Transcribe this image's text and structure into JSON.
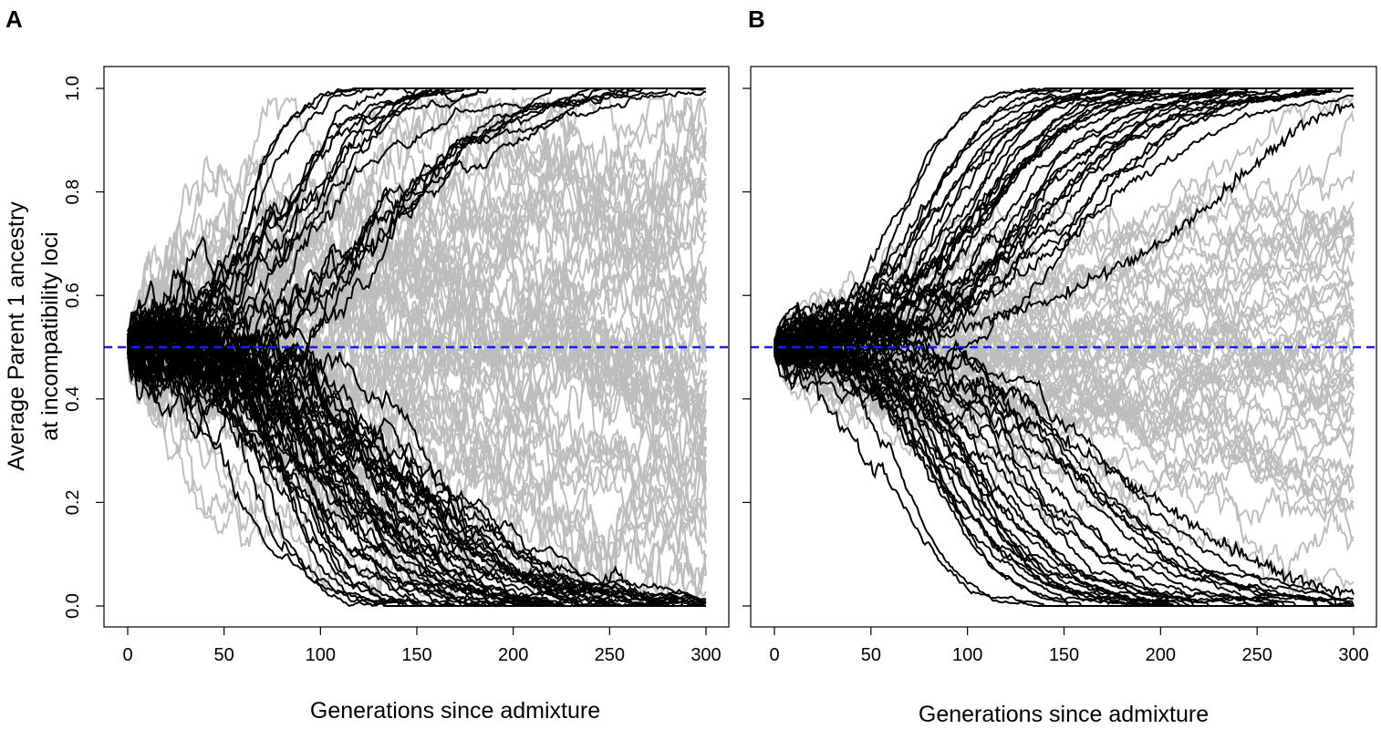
{
  "chart_data": [
    {
      "type": "line",
      "panel_label": "A",
      "xlabel": "Generations since admixture",
      "ylabel_lines": [
        "Average Parent 1 ancestry",
        "at incompatibility loci"
      ],
      "xlim": [
        0,
        300
      ],
      "ylim": [
        0,
        1
      ],
      "xticks": [
        0,
        50,
        100,
        150,
        200,
        250,
        300
      ],
      "yticks": [
        0.0,
        0.2,
        0.4,
        0.6,
        0.8,
        1.0
      ],
      "xtick_labels": [
        "0",
        "50",
        "100",
        "150",
        "200",
        "250",
        "300"
      ],
      "ytick_labels": [
        "0.0",
        "0.2",
        "0.4",
        "0.6",
        "0.8",
        "1.0"
      ],
      "grid": false,
      "reference_line": {
        "y": 0.5,
        "style": "dashed",
        "color": "#1a1aff"
      },
      "series_groups": [
        {
          "color": "#bdbdbd",
          "description_count": 60,
          "start": 0.5,
          "final_values_range": [
            0.06,
            0.84
          ],
          "step_sd": 0.02,
          "seed": 11
        },
        {
          "color": "#000000",
          "description_count": 60,
          "start": 0.5,
          "fix_time_range": [
            90,
            300
          ],
          "fix_values": [
            0,
            1
          ],
          "noise_sd": 0.012,
          "seed": 23
        }
      ],
      "special_series": [
        {
          "color": "#000000",
          "points": [
            [
              0,
              0.5
            ],
            [
              60,
              0.35
            ],
            [
              120,
              0.2
            ],
            [
              180,
              0.1
            ],
            [
              220,
              0.04
            ],
            [
              245,
              0.03
            ],
            [
              253,
              0.07
            ],
            [
              262,
              0.03
            ],
            [
              272,
              0.005
            ],
            [
              280,
              0
            ],
            [
              300,
              0
            ]
          ]
        }
      ]
    },
    {
      "type": "line",
      "panel_label": "B",
      "xlabel": "Generations since admixture",
      "xlim": [
        0,
        300
      ],
      "ylim": [
        0,
        1
      ],
      "xticks": [
        0,
        50,
        100,
        150,
        200,
        250,
        300
      ],
      "yticks": [
        0.0,
        0.2,
        0.4,
        0.6,
        0.8,
        1.0
      ],
      "xtick_labels": [
        "0",
        "50",
        "100",
        "150",
        "200",
        "250",
        "300"
      ],
      "grid": false,
      "reference_line": {
        "y": 0.5,
        "style": "dashed",
        "color": "#1a1aff"
      },
      "series_groups": [
        {
          "color": "#bdbdbd",
          "description_count": 50,
          "start": 0.5,
          "final_values_range": [
            0.32,
            0.7
          ],
          "step_sd": 0.011,
          "seed": 37
        },
        {
          "color": "#000000",
          "description_count": 60,
          "start": 0.5,
          "fix_time_range": [
            120,
            300
          ],
          "fix_values": [
            0,
            1
          ],
          "noise_sd": 0.008,
          "seed": 53
        }
      ],
      "special_series": [
        {
          "color": "#000000",
          "points": [
            [
              0,
              0.5
            ],
            [
              100,
              0.54
            ],
            [
              150,
              0.6
            ],
            [
              200,
              0.7
            ],
            [
              240,
              0.82
            ],
            [
              270,
              0.92
            ],
            [
              290,
              0.96
            ],
            [
              300,
              0.965
            ]
          ]
        },
        {
          "color": "#000000",
          "points": [
            [
              0,
              0.5
            ],
            [
              100,
              0.42
            ],
            [
              150,
              0.32
            ],
            [
              200,
              0.2
            ],
            [
              240,
              0.1
            ],
            [
              270,
              0.05
            ],
            [
              290,
              0.03
            ],
            [
              300,
              0.025
            ]
          ]
        }
      ]
    }
  ]
}
